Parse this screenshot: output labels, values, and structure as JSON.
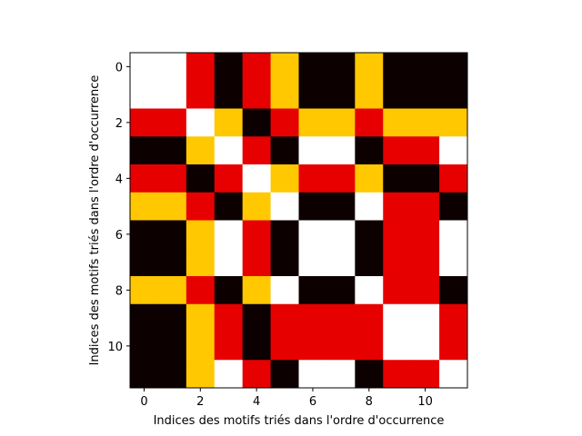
{
  "chart_data": {
    "type": "heatmap",
    "xlabel": "Indices des motifs triés dans l'ordre d'occurrence",
    "ylabel": "Indices des motifs triés dans l'ordre d'occurrence",
    "x_ticks": [
      "0",
      "2",
      "4",
      "6",
      "8",
      "10"
    ],
    "y_ticks": [
      "0",
      "2",
      "4",
      "6",
      "8",
      "10"
    ],
    "x_range": [
      -0.5,
      11.5
    ],
    "y_range": [
      -0.5,
      11.5
    ],
    "y_inverted": true,
    "grid": false,
    "colormap": [
      "#0d0000",
      "#e60000",
      "#ffc800",
      "#ffffff"
    ],
    "values": [
      [
        3,
        3,
        1,
        0,
        1,
        2,
        0,
        0,
        2,
        0,
        0,
        0
      ],
      [
        3,
        3,
        1,
        0,
        1,
        2,
        0,
        0,
        2,
        0,
        0,
        0
      ],
      [
        1,
        1,
        3,
        2,
        0,
        1,
        2,
        2,
        1,
        2,
        2,
        2
      ],
      [
        0,
        0,
        2,
        3,
        1,
        0,
        3,
        3,
        0,
        1,
        1,
        3
      ],
      [
        1,
        1,
        0,
        1,
        3,
        2,
        1,
        1,
        2,
        0,
        0,
        1
      ],
      [
        2,
        2,
        1,
        0,
        2,
        3,
        0,
        0,
        3,
        1,
        1,
        0
      ],
      [
        0,
        0,
        2,
        3,
        1,
        0,
        3,
        3,
        0,
        1,
        1,
        3
      ],
      [
        0,
        0,
        2,
        3,
        1,
        0,
        3,
        3,
        0,
        1,
        1,
        3
      ],
      [
        2,
        2,
        1,
        0,
        2,
        3,
        0,
        0,
        3,
        1,
        1,
        0
      ],
      [
        0,
        0,
        2,
        1,
        0,
        1,
        1,
        1,
        1,
        3,
        3,
        1
      ],
      [
        0,
        0,
        2,
        1,
        0,
        1,
        1,
        1,
        1,
        3,
        3,
        1
      ],
      [
        0,
        0,
        2,
        3,
        1,
        0,
        3,
        3,
        0,
        1,
        1,
        3
      ]
    ]
  }
}
